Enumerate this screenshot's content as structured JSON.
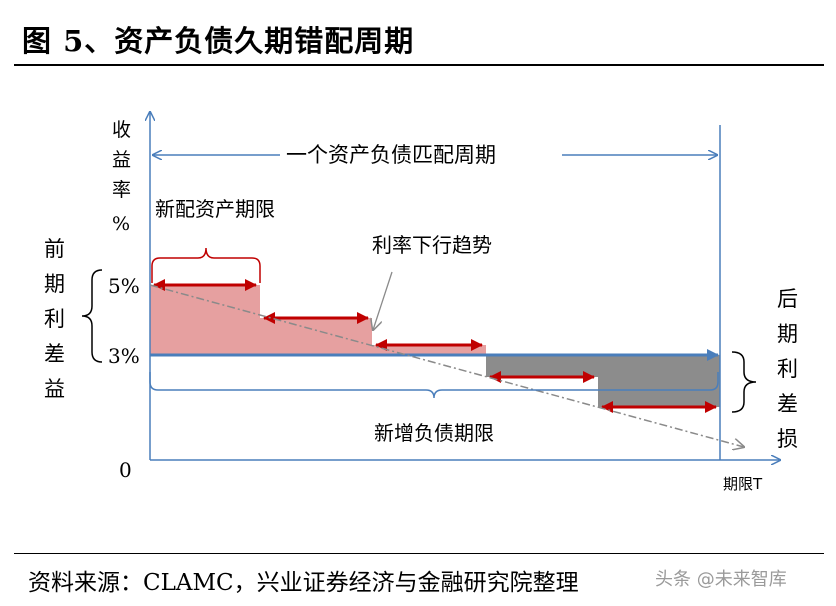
{
  "title": "图 5、资产负债久期错配周期",
  "footer": {
    "source": "资料来源：CLAMC，兴业证券经济与金融研究院整理",
    "watermark": "头条 @未来智库"
  },
  "diagram": {
    "y_axis_label": [
      "收",
      "益",
      "率",
      "%"
    ],
    "x_axis_label": "期限T",
    "origin_label": "0",
    "rate_high": "5%",
    "rate_low": "3%",
    "cycle_label": "一个资产负债匹配周期",
    "new_asset_term_label": "新配资产期限",
    "downtrend_label": "利率下行趋势",
    "new_liability_term_label": "新增负债期限",
    "left_side_label": [
      "前",
      "期",
      "利",
      "差",
      "益"
    ],
    "right_side_label": [
      "后",
      "期",
      "利",
      "差",
      "损"
    ],
    "colors": {
      "axis": "#4a7ebb",
      "gain": "#e6a0a0",
      "loss": "#8c8c8c",
      "term_arrow": "#c00000",
      "trend": "#8a8a8a"
    }
  }
}
